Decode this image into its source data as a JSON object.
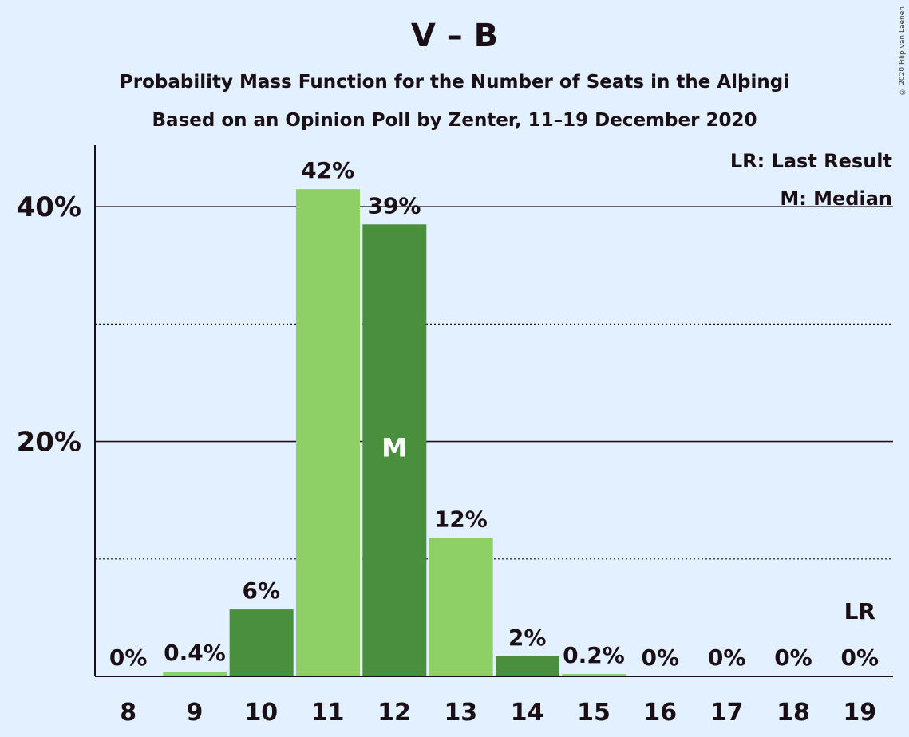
{
  "title": "V – B",
  "subtitle": "Probability Mass Function for the Number of Seats in the Alþingi",
  "subtitle2": "Based on an Opinion Poll by Zenter, 11–19 December 2020",
  "copyright": "© 2020 Filip van Laenen",
  "legend": {
    "lr": "LR: Last Result",
    "m": "M: Median"
  },
  "colors": {
    "background": "#e3f0ff",
    "light_green": "#8ecf66",
    "dark_green": "#4a8f3e",
    "text": "#1a0f14"
  },
  "chart_data": {
    "type": "bar",
    "categories": [
      "8",
      "9",
      "10",
      "11",
      "12",
      "13",
      "14",
      "15",
      "16",
      "17",
      "18",
      "19"
    ],
    "values": [
      0,
      0.4,
      5.7,
      41.5,
      38.5,
      11.8,
      1.7,
      0.2,
      0,
      0,
      0,
      0
    ],
    "labels": [
      "0%",
      "0.4%",
      "6%",
      "42%",
      "39%",
      "12%",
      "2%",
      "0.2%",
      "0%",
      "0%",
      "0%",
      "0%"
    ],
    "bar_colors": [
      "dark",
      "light",
      "dark",
      "light",
      "dark",
      "light",
      "dark",
      "light",
      "dark",
      "light",
      "dark",
      "light"
    ],
    "median_category": "12",
    "median_marker": "M",
    "last_result_category": "19",
    "last_result_marker": "LR",
    "ylim": [
      0,
      45
    ],
    "yticks": [
      20,
      40
    ],
    "ytick_labels": [
      "20%",
      "40%"
    ],
    "minor_gridlines": [
      10,
      30
    ],
    "xlabel": "",
    "ylabel": "",
    "legend_position": "top-right"
  }
}
